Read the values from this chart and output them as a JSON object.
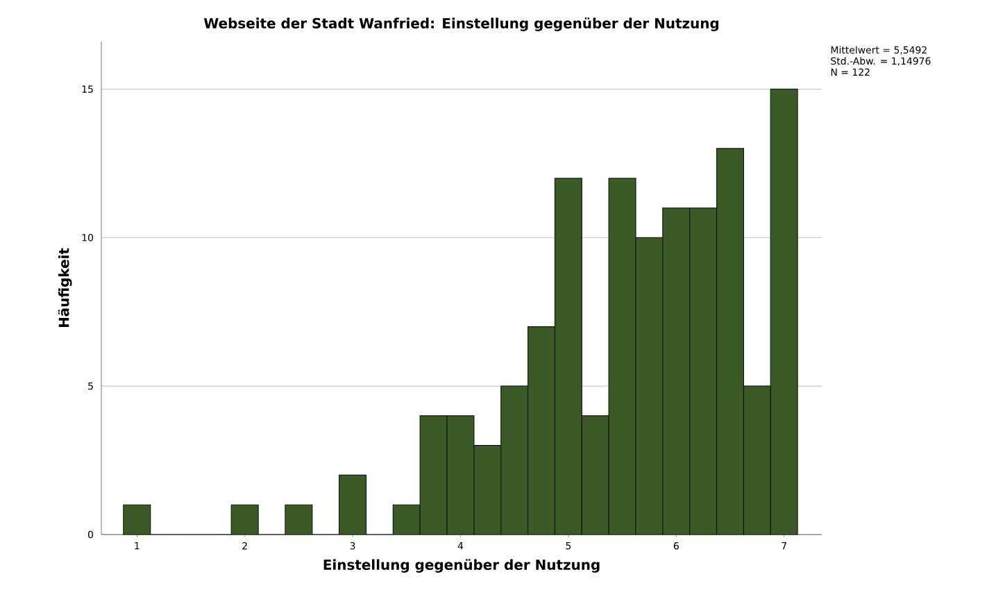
{
  "chart_data": {
    "type": "histogram",
    "title": "Webseite der Stadt Wanfried: Einstellung gegenüber der Nutzung",
    "xlabel": "Einstellung gegenüber der Nutzung",
    "ylabel": "Häufigkeit",
    "bins": [
      0.875,
      1.125,
      1.375,
      1.625,
      1.875,
      2.125,
      2.375,
      2.625,
      2.875,
      3.125,
      3.375,
      3.625,
      3.875,
      4.125,
      4.375,
      4.625,
      4.875,
      5.125,
      5.375,
      5.625,
      5.875,
      6.125,
      6.375,
      6.625,
      6.875,
      7.125
    ],
    "values": [
      1,
      0,
      0,
      0,
      1,
      0,
      1,
      0,
      2,
      0,
      1,
      4,
      4,
      3,
      5,
      7,
      12,
      4,
      12,
      10,
      11,
      11,
      13,
      5,
      15
    ],
    "color": "#3b5a27",
    "xlim": [
      0.67,
      7.35
    ],
    "ylim": [
      0,
      16.6
    ],
    "xticks": [
      1,
      2,
      3,
      4,
      5,
      6,
      7
    ],
    "yticks": [
      0,
      5,
      10,
      15
    ],
    "grid": "y",
    "annotations": [
      "Mittelwert = 5,5492",
      "Std.-Abw. = 1,14976",
      "N = 122"
    ]
  }
}
